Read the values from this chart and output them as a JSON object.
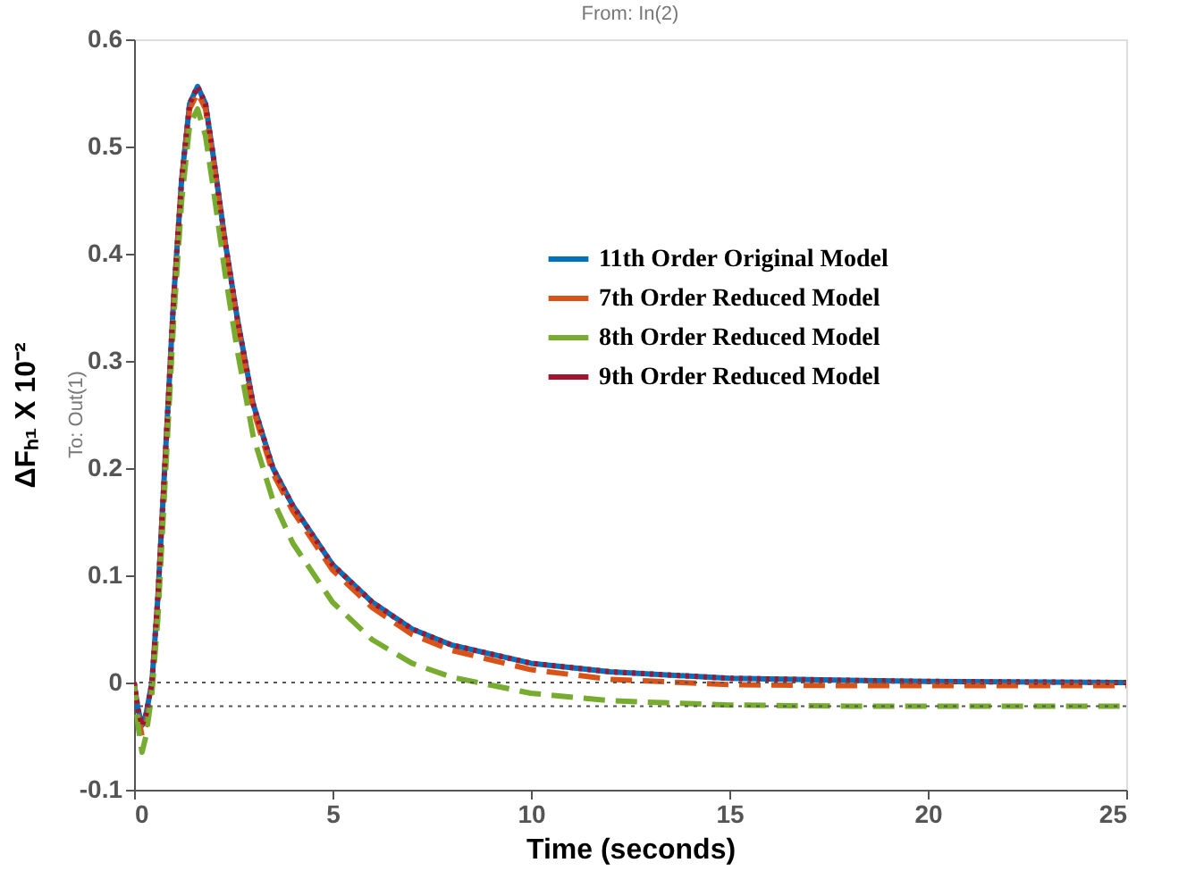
{
  "chart_data": {
    "type": "line",
    "title": "From: In(2)",
    "xlabel": "Time (seconds)",
    "ylabel": "ΔFₕ₁ X 10⁻²",
    "annotations": [
      "To: Out(1)"
    ],
    "x": [
      0,
      0.1,
      0.2,
      0.3,
      0.45,
      0.6,
      0.8,
      1.0,
      1.2,
      1.4,
      1.6,
      1.8,
      2.0,
      2.3,
      2.6,
      3.0,
      3.5,
      4,
      5,
      6,
      7,
      8,
      10,
      12,
      15,
      18,
      20,
      25
    ],
    "series": [
      {
        "name": "11th Order Original Model",
        "color": "#0072bd",
        "line_style": "solid",
        "values": [
          0,
          -0.025,
          -0.04,
          -0.03,
          0.0,
          0.08,
          0.22,
          0.36,
          0.47,
          0.54,
          0.556,
          0.54,
          0.49,
          0.41,
          0.34,
          0.26,
          0.2,
          0.165,
          0.11,
          0.075,
          0.05,
          0.035,
          0.018,
          0.01,
          0.004,
          0.002,
          0.001,
          0
        ]
      },
      {
        "name": "7th Order Reduced Model",
        "color": "#d95319",
        "line_style": "dashed",
        "values": [
          0,
          -0.03,
          -0.05,
          -0.04,
          -0.005,
          0.075,
          0.215,
          0.355,
          0.465,
          0.535,
          0.55,
          0.535,
          0.485,
          0.405,
          0.335,
          0.255,
          0.195,
          0.16,
          0.105,
          0.07,
          0.045,
          0.03,
          0.012,
          0.003,
          -0.002,
          -0.003,
          -0.003,
          -0.003
        ]
      },
      {
        "name": "8th Order Reduced Model",
        "color": "#77ac30",
        "line_style": "dashed",
        "values": [
          0,
          -0.04,
          -0.065,
          -0.05,
          -0.01,
          0.06,
          0.2,
          0.34,
          0.45,
          0.52,
          0.535,
          0.51,
          0.46,
          0.38,
          0.31,
          0.23,
          0.17,
          0.13,
          0.075,
          0.04,
          0.018,
          0.005,
          -0.01,
          -0.017,
          -0.021,
          -0.022,
          -0.022,
          -0.022
        ]
      },
      {
        "name": "9th Order Reduced Model",
        "color": "#a2142f",
        "line_style": "dotted",
        "values": [
          0,
          -0.025,
          -0.04,
          -0.03,
          0.0,
          0.08,
          0.22,
          0.36,
          0.47,
          0.54,
          0.556,
          0.54,
          0.49,
          0.41,
          0.34,
          0.26,
          0.2,
          0.165,
          0.11,
          0.075,
          0.05,
          0.035,
          0.018,
          0.01,
          0.004,
          0.002,
          0.001,
          0
        ]
      }
    ],
    "ref_lines": [
      {
        "axis": "y",
        "value": 0,
        "color": "#555555",
        "line_style": "dotted"
      },
      {
        "axis": "y",
        "value": -0.022,
        "color": "#555555",
        "line_style": "dotted"
      }
    ],
    "xlim": [
      0,
      25
    ],
    "xticks": [
      0,
      5,
      10,
      15,
      20,
      25
    ],
    "ylim": [
      -0.1,
      0.6
    ],
    "yticks": [
      -0.1,
      0,
      0.1,
      0.2,
      0.3,
      0.4,
      0.5,
      0.6
    ],
    "grid": false,
    "legend": "top right"
  }
}
